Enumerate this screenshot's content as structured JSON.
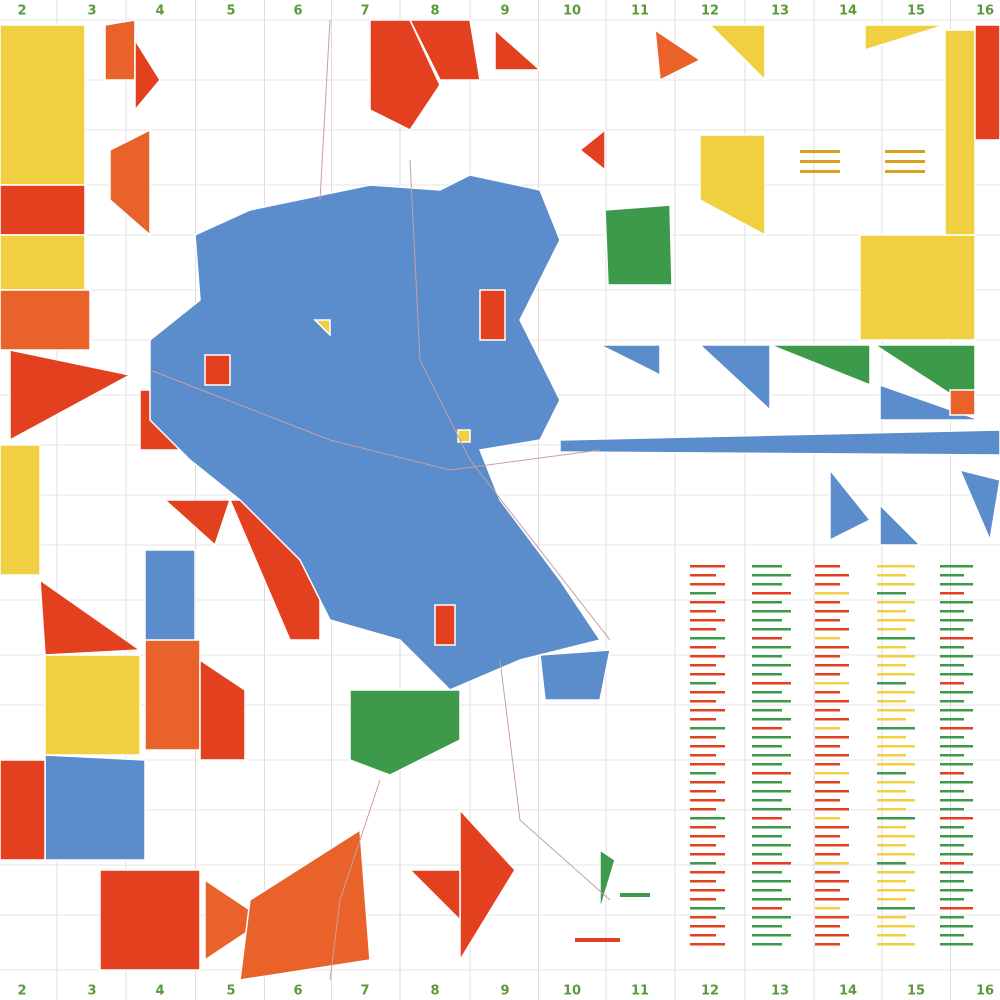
{
  "grid": {
    "top": [
      "2",
      "3",
      "4",
      "5",
      "6",
      "7",
      "8",
      "9",
      "10",
      "11",
      "12",
      "13",
      "14",
      "15",
      "16"
    ],
    "bottom": [
      "2",
      "3",
      "4",
      "5",
      "6",
      "7",
      "8",
      "9",
      "10",
      "11",
      "12",
      "13",
      "14",
      "15",
      "16"
    ]
  }
}
